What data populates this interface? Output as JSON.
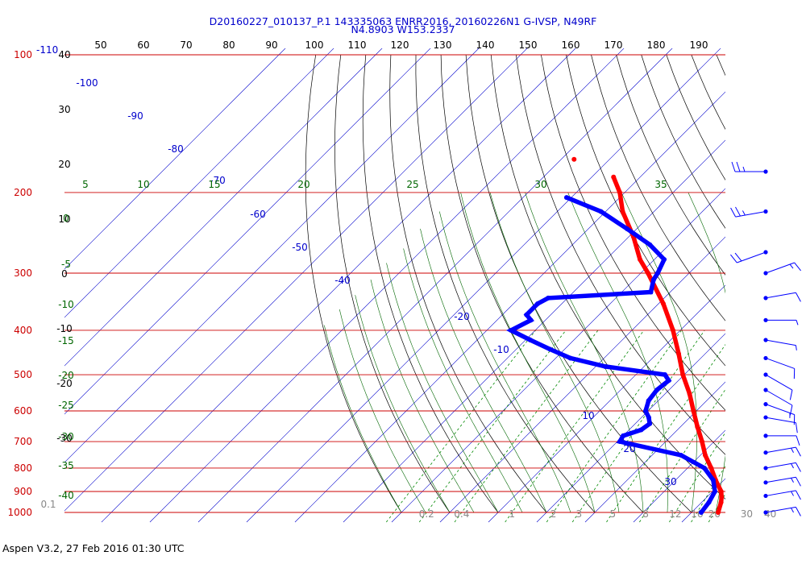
{
  "header": {
    "line1": "D20160227_010137_P.1 143335063 ENRR2016, 20160226N1 G-IVSP, N49RF",
    "line2": "N4.8903 W153.2337"
  },
  "footer": {
    "text": "Aspen V3.2, 27 Feb 2016  01:30 UTC"
  },
  "colors": {
    "isobar": "#cc0000",
    "isotherm": "#0000cc",
    "dry_adiabat": "#000000",
    "moist_adiabat": "#006600",
    "mixing_ratio": "#008800",
    "temperature_trace": "#ff0000",
    "dewpoint_trace": "#0000ff",
    "wind_barb": "#0000ff"
  },
  "chart_data": {
    "type": "skew-T log-P diagram",
    "pressure_levels_hPa": [
      100,
      200,
      300,
      400,
      500,
      600,
      700,
      800,
      900,
      1000
    ],
    "top_pressure_label_hPa": "100",
    "top_extra_label": "-110",
    "top_axis_ticks": [
      "50",
      "60",
      "70",
      "80",
      "90",
      "100",
      "110",
      "120",
      "130",
      "140",
      "150",
      "160",
      "170",
      "180",
      "190"
    ],
    "left_axis_numbers": [
      "40",
      "30",
      "20",
      "10",
      "0",
      "-10",
      "-20",
      "-30"
    ],
    "isotherm_labels": [
      "-100",
      "-90",
      "-80",
      "-70",
      "-60",
      "-50",
      "-40",
      "-20",
      "-10",
      "10",
      "20",
      "30"
    ],
    "moist_labels_top": [
      "5",
      "10",
      "15",
      "20",
      "25",
      "30",
      "35"
    ],
    "moist_labels_left": [
      "0",
      "-5",
      "-10",
      "-15",
      "-20",
      "-25",
      "-30",
      "-35",
      "-40"
    ],
    "mixing_ratio_labels": [
      "0.1",
      "0.2",
      "0.4",
      "1",
      "2",
      "3",
      "5",
      "8",
      "12",
      "16",
      "20",
      "30",
      "40"
    ],
    "temperature": {
      "name": "Temperature",
      "p": [
        1000,
        950,
        925,
        900,
        850,
        800,
        750,
        700,
        650,
        600,
        550,
        500,
        450,
        400,
        350,
        300,
        280,
        250,
        220,
        200,
        185
      ],
      "t": [
        25.5,
        24.0,
        23.0,
        21.8,
        18.3,
        14.9,
        11.0,
        7.5,
        3.5,
        -0.6,
        -5.0,
        -10.3,
        -15.5,
        -21.5,
        -29.0,
        -38.5,
        -43.0,
        -49.0,
        -56.5,
        -61.0,
        -65.5
      ]
    },
    "dewpoint": {
      "name": "Dewpoint",
      "p": [
        1000,
        950,
        900,
        850,
        800,
        750,
        700,
        680,
        660,
        640,
        620,
        600,
        570,
        540,
        515,
        500,
        480,
        460,
        440,
        420,
        400,
        380,
        370,
        350,
        340,
        330,
        310,
        300,
        280,
        260,
        240,
        220,
        205
      ],
      "td": [
        22.0,
        21.5,
        20.5,
        17.8,
        13.5,
        6.0,
        -9.5,
        -10.0,
        -7.5,
        -7.0,
        -8.5,
        -10.5,
        -12.0,
        -12.5,
        -12.0,
        -14.0,
        -28.0,
        -37.0,
        -43.0,
        -49.0,
        -55.0,
        -53.0,
        -55.0,
        -55.0,
        -54.0,
        -34.0,
        -36.0,
        -36.5,
        -38.0,
        -44.0,
        -52.0,
        -61.0,
        -71.0
      ]
    },
    "wind_barbs": [
      {
        "p": 180,
        "speed_kt": 25,
        "dir_deg": 270
      },
      {
        "p": 220,
        "speed_kt": 25,
        "dir_deg": 260
      },
      {
        "p": 270,
        "speed_kt": 20,
        "dir_deg": 250
      },
      {
        "p": 300,
        "speed_kt": 15,
        "dir_deg": 70
      },
      {
        "p": 340,
        "speed_kt": 10,
        "dir_deg": 80
      },
      {
        "p": 380,
        "speed_kt": 5,
        "dir_deg": 90
      },
      {
        "p": 420,
        "speed_kt": 5,
        "dir_deg": 100
      },
      {
        "p": 460,
        "speed_kt": 10,
        "dir_deg": 110
      },
      {
        "p": 500,
        "speed_kt": 10,
        "dir_deg": 120
      },
      {
        "p": 540,
        "speed_kt": 10,
        "dir_deg": 120
      },
      {
        "p": 580,
        "speed_kt": 15,
        "dir_deg": 110
      },
      {
        "p": 620,
        "speed_kt": 10,
        "dir_deg": 100
      },
      {
        "p": 680,
        "speed_kt": 10,
        "dir_deg": 90
      },
      {
        "p": 740,
        "speed_kt": 15,
        "dir_deg": 80
      },
      {
        "p": 800,
        "speed_kt": 15,
        "dir_deg": 80
      },
      {
        "p": 860,
        "speed_kt": 15,
        "dir_deg": 80
      },
      {
        "p": 920,
        "speed_kt": 15,
        "dir_deg": 80
      },
      {
        "p": 1000,
        "speed_kt": 15,
        "dir_deg": 80
      }
    ]
  }
}
